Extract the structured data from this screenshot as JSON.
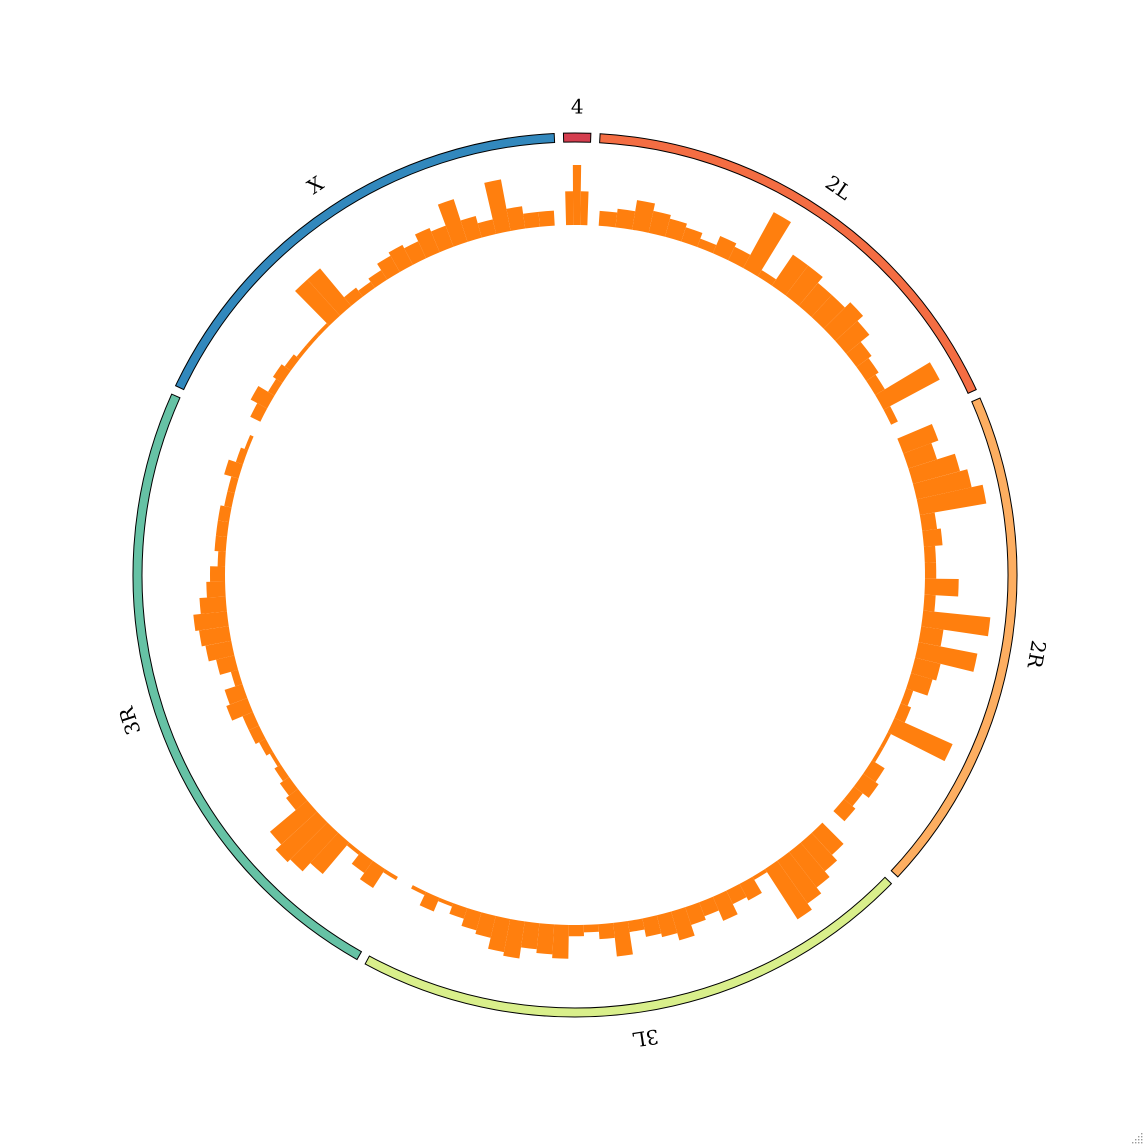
{
  "chart_data": {
    "type": "circular-histogram",
    "title": "",
    "colors": {
      "bar": "#ff7f0e",
      "ideogram_stroke": "#000000"
    },
    "chromosomes": [
      {
        "name": "4",
        "color": "#d53e4f",
        "length": 1.35
      },
      {
        "name": "2L",
        "color": "#f46d43",
        "length": 23.5
      },
      {
        "name": "2R",
        "color": "#fdae61",
        "length": 25.3
      },
      {
        "name": "3L",
        "color": "#d9ef8b",
        "length": 28.1
      },
      {
        "name": "3R",
        "color": "#66c2a5",
        "length": 32.1
      },
      {
        "name": "X",
        "color": "#3288bd",
        "length": 23.5
      }
    ],
    "histogram": {
      "4": [
        0.45,
        0.8,
        0.45
      ],
      "2L": [
        0.2,
        0.25,
        0.4,
        0.3,
        0.25,
        0.2,
        0.12,
        0.25,
        0.2,
        0.85,
        0.1,
        0.5,
        0.5,
        0.4,
        0.4,
        0.5,
        0.4,
        0.25,
        0.2,
        0.15,
        0.85,
        0.1
      ],
      "2R": [
        0.5,
        0.4,
        0.65,
        0.75,
        0.9,
        0.2,
        0.25,
        0.15,
        0.15,
        0.45,
        0.15,
        0.9,
        0.3,
        0.8,
        0.35,
        0.3,
        0.1,
        0.15,
        0.85,
        0.05,
        0.05,
        0.2,
        0.25,
        0.15,
        0.2
      ],
      "3L": [
        0.4,
        0.5,
        0.6,
        0.7,
        0.8,
        0.05,
        0.25,
        0.2,
        0.35,
        0.2,
        0.25,
        0.4,
        0.3,
        0.25,
        0.15,
        0.45,
        0.2,
        0.1,
        0.15,
        0.45,
        0.4,
        0.35,
        0.5,
        0.45,
        0.3,
        0.25,
        0.15,
        0.05,
        0.2,
        0.05
      ],
      "3R": [
        0.05,
        0.3,
        0.2,
        0.05,
        0.55,
        0.7,
        0.75,
        0.65,
        0.2,
        0.15,
        0.1,
        0.05,
        0.1,
        0.15,
        0.15,
        0.3,
        0.25,
        0.1,
        0.25,
        0.35,
        0.4,
        0.45,
        0.35,
        0.25,
        0.2,
        0.1,
        0.15,
        0.15,
        0.15,
        0.1,
        0.1,
        0.2,
        0.1,
        0.05
      ],
      "X": [
        0.15,
        0.25,
        0.1,
        0.15,
        0.1,
        0.05,
        0.05,
        0.05,
        0.65,
        0.65,
        0.15,
        0.1,
        0.15,
        0.25,
        0.3,
        0.25,
        0.35,
        0.3,
        0.6,
        0.3,
        0.2,
        0.7,
        0.3,
        0.2,
        0.2
      ]
    }
  }
}
